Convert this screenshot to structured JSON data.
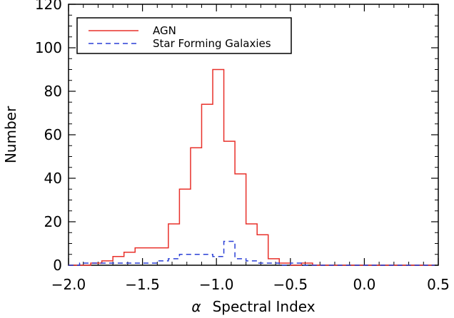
{
  "chart_data": {
    "type": "line",
    "subtype": "step-histogram",
    "title": "",
    "xlabel_symbol": "α",
    "xlabel_text": "Spectral Index",
    "ylabel": "Number",
    "xlim": [
      -2.0,
      0.5
    ],
    "ylim": [
      0,
      120
    ],
    "xticks": [
      "−2.0",
      "−1.5",
      "−1.0",
      "−0.5",
      "0.0",
      "0.5"
    ],
    "yticks": [
      "0",
      "20",
      "40",
      "60",
      "80",
      "100",
      "120"
    ],
    "grid": false,
    "legend_position": "top-left",
    "bin_edges": [
      -2.0,
      -1.925,
      -1.85,
      -1.775,
      -1.7,
      -1.625,
      -1.55,
      -1.475,
      -1.4,
      -1.325,
      -1.25,
      -1.175,
      -1.1,
      -1.025,
      -0.95,
      -0.875,
      -0.8,
      -0.725,
      -0.65,
      -0.575,
      -0.5,
      -0.425,
      -0.35,
      -0.275,
      -0.2,
      -0.125,
      -0.05,
      0.025,
      0.1,
      0.175,
      0.25,
      0.325,
      0.4,
      0.475
    ],
    "series": [
      {
        "name": "AGN",
        "color": "#e8302a",
        "dash": "solid",
        "values": [
          0,
          0,
          1,
          2,
          4,
          6,
          8,
          8,
          8,
          19,
          35,
          54,
          74,
          90,
          57,
          42,
          19,
          14,
          3,
          1,
          0,
          1,
          0,
          0,
          0,
          0,
          0,
          0,
          0,
          0,
          0,
          0,
          0
        ]
      },
      {
        "name": "Star Forming Galaxies",
        "color": "#2a3fd6",
        "dash": "dashed",
        "values": [
          0,
          1,
          1,
          1,
          1,
          1,
          1,
          1,
          2,
          3,
          5,
          5,
          5,
          4,
          11,
          3,
          2,
          1,
          1,
          0,
          1,
          0,
          0,
          0,
          0,
          0,
          0,
          0,
          0,
          0,
          0,
          0,
          0
        ]
      }
    ]
  }
}
